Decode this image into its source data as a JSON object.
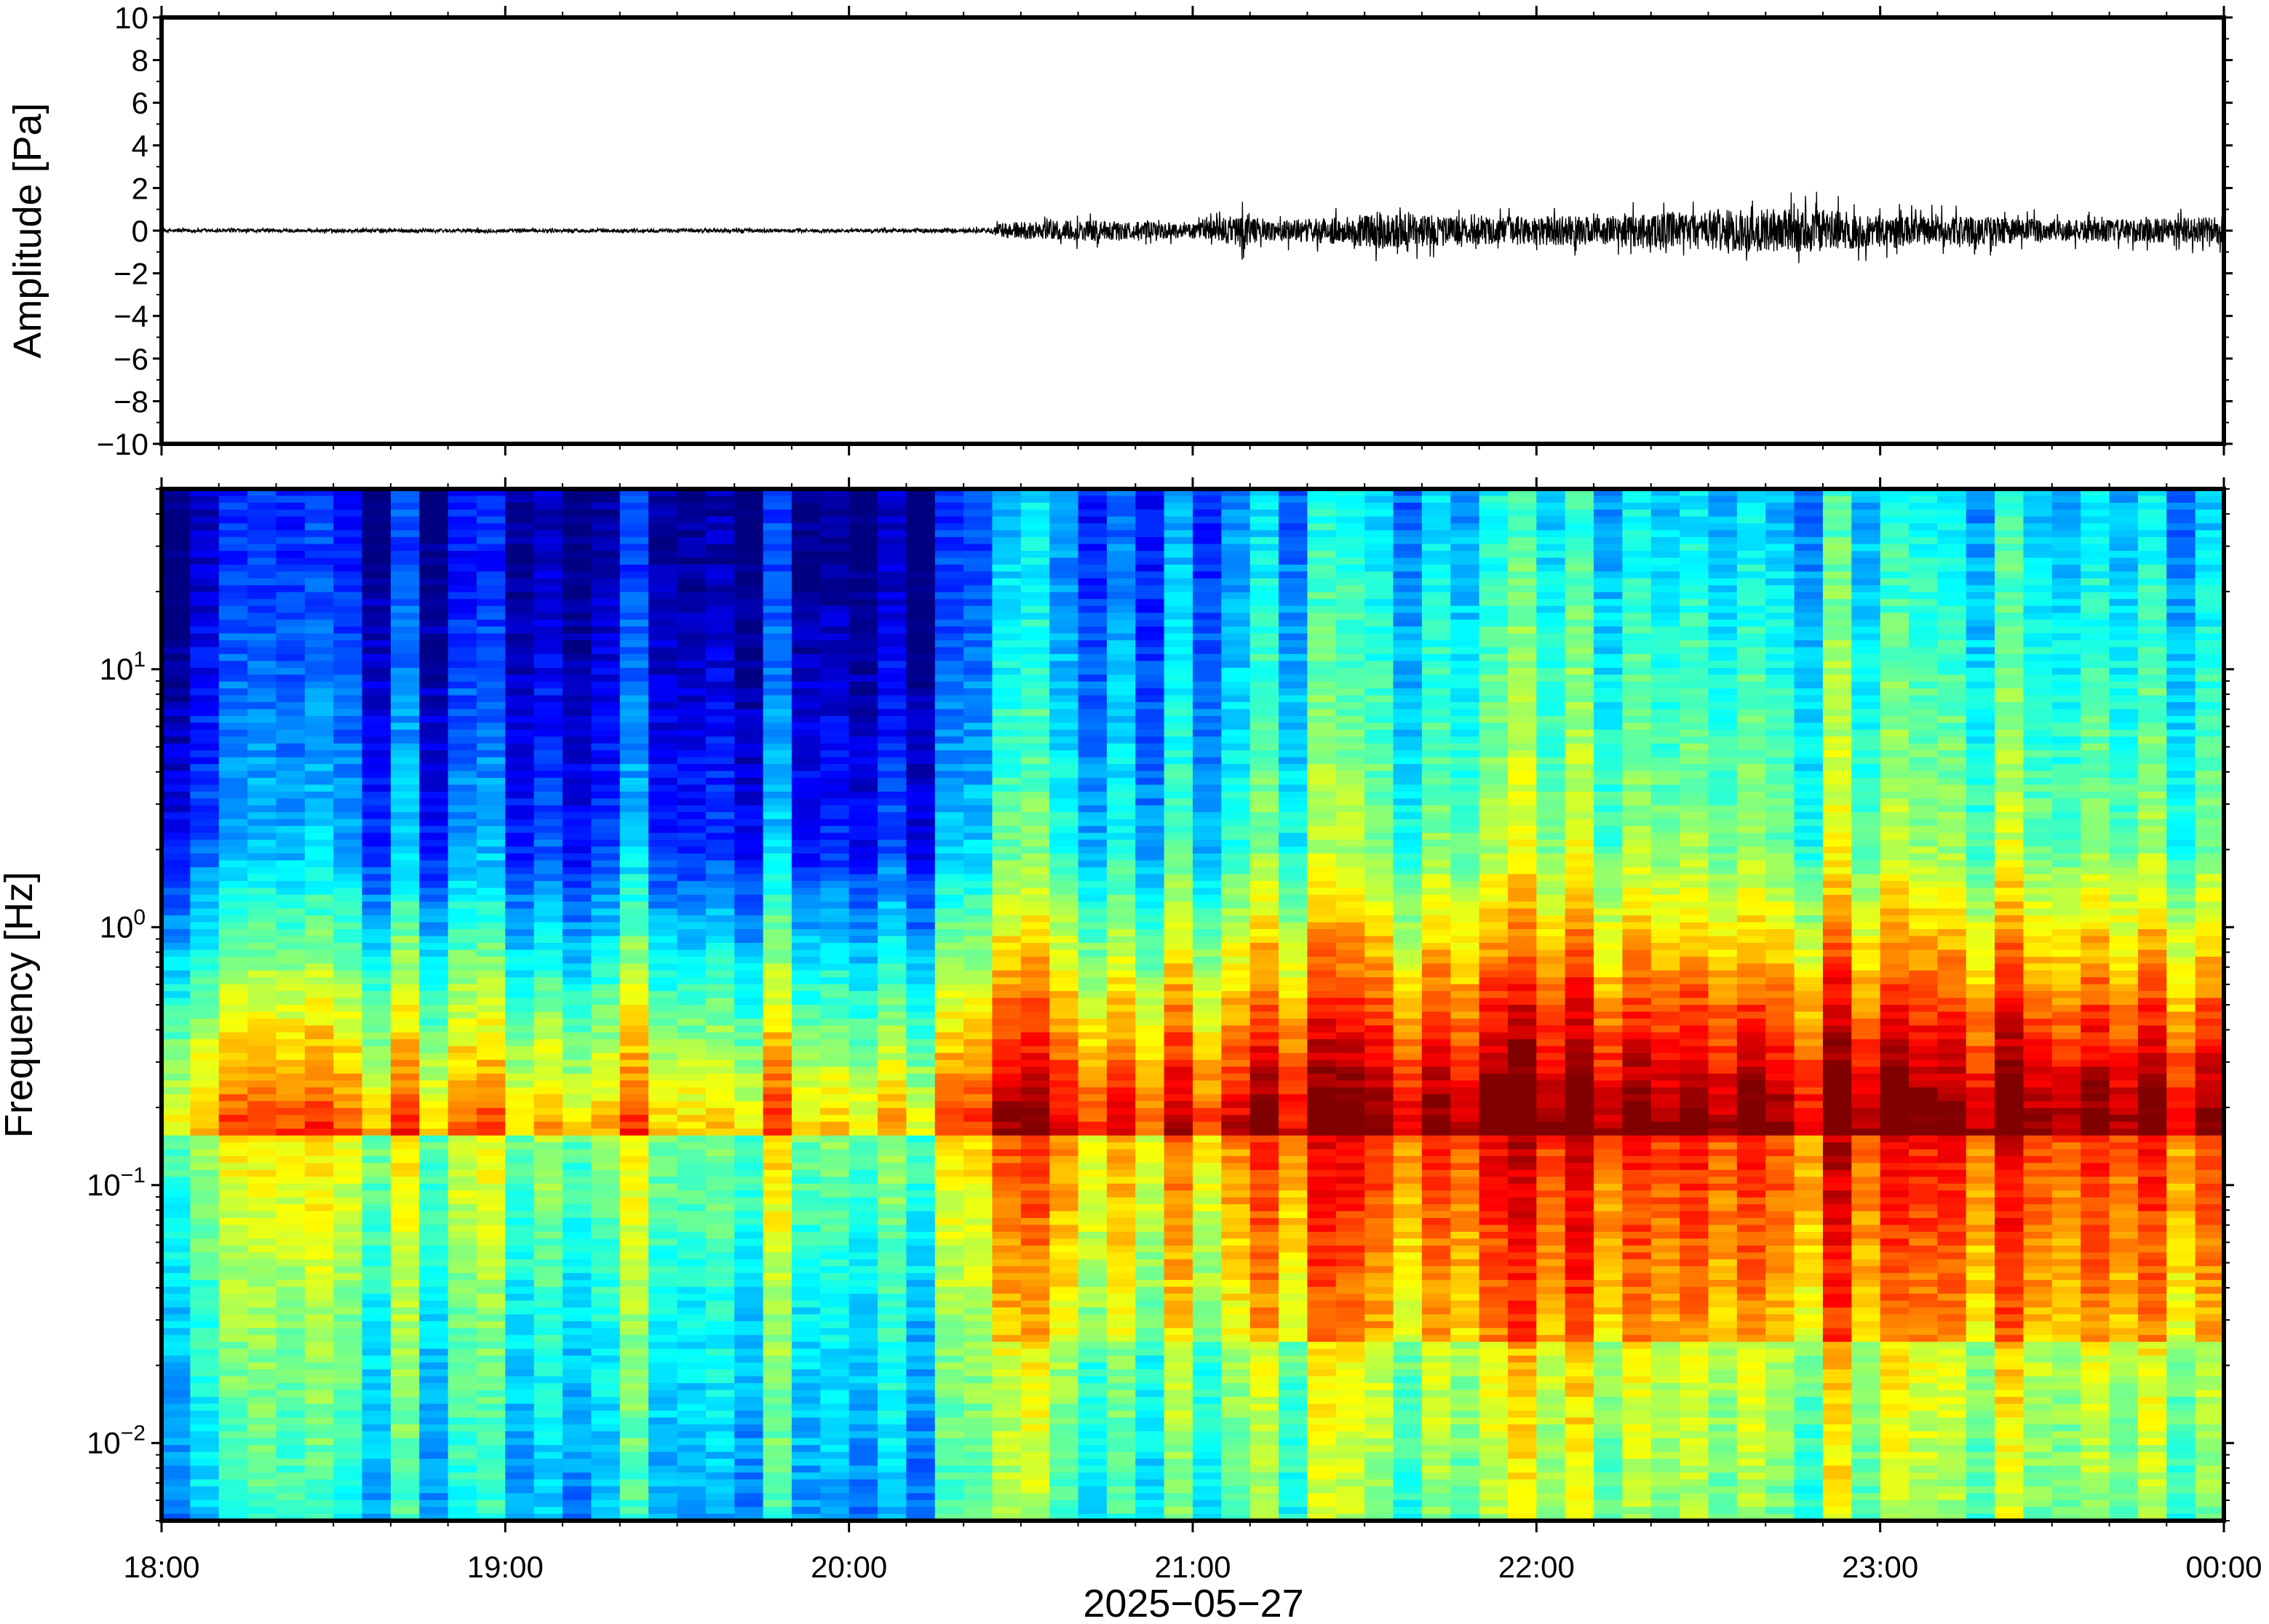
{
  "chart_data": [
    {
      "type": "line",
      "ylabel": "Amplitude [Pa]",
      "ylim": [
        -10,
        10
      ],
      "yticks": [
        "10",
        "8",
        "6",
        "4",
        "2",
        "0",
        "−2",
        "−4",
        "−6",
        "−8",
        "−10"
      ],
      "ytick_values": [
        10,
        8,
        6,
        4,
        2,
        0,
        -2,
        -4,
        -6,
        -8,
        -10
      ],
      "grid": false,
      "series": [
        {
          "color": "#000000",
          "envelope": {
            "time_hours": [
              18.0,
              18.5,
              19.0,
              19.5,
              20.0,
              20.4,
              20.45,
              20.7,
              21.0,
              21.15,
              21.2,
              21.45,
              21.55,
              21.8,
              22.0,
              22.2,
              22.35,
              22.6,
              22.8,
              23.0,
              23.3,
              23.6,
              24.0
            ],
            "max_abs_pa": [
              0.15,
              0.15,
              0.15,
              0.15,
              0.15,
              0.2,
              0.7,
              0.9,
              0.6,
              1.5,
              0.8,
              1.2,
              1.6,
              1.1,
              1.3,
              1.2,
              1.5,
              1.8,
              1.9,
              1.3,
              1.2,
              0.9,
              1.2
            ]
          }
        }
      ]
    },
    {
      "type": "heatmap",
      "ylabel": "Frequency [Hz]",
      "xlabel": "2025−05−27",
      "y_scale": "log",
      "ylim": [
        0.005,
        50
      ],
      "yticks": [
        {
          "base": "10",
          "exp": "1",
          "value": 10
        },
        {
          "base": "10",
          "exp": "0",
          "value": 1
        },
        {
          "base": "10",
          "exp": "−1",
          "value": 0.1
        },
        {
          "base": "10",
          "exp": "−2",
          "value": 0.01
        }
      ],
      "x_categories": [
        "18:00",
        "19:00",
        "20:00",
        "21:00",
        "22:00",
        "23:00",
        "00:00"
      ],
      "xlim_hours": [
        18,
        24
      ],
      "colormap": "jet",
      "colorbar": false,
      "power_regimes": [
        {
          "from_hours": 18.0,
          "to_hours": 20.4,
          "description_level": "low"
        },
        {
          "from_hours": 20.4,
          "to_hours": 21.15,
          "description_level": "medium"
        },
        {
          "from_hours": 21.15,
          "to_hours": 24.0,
          "description_level": "high"
        }
      ]
    }
  ]
}
